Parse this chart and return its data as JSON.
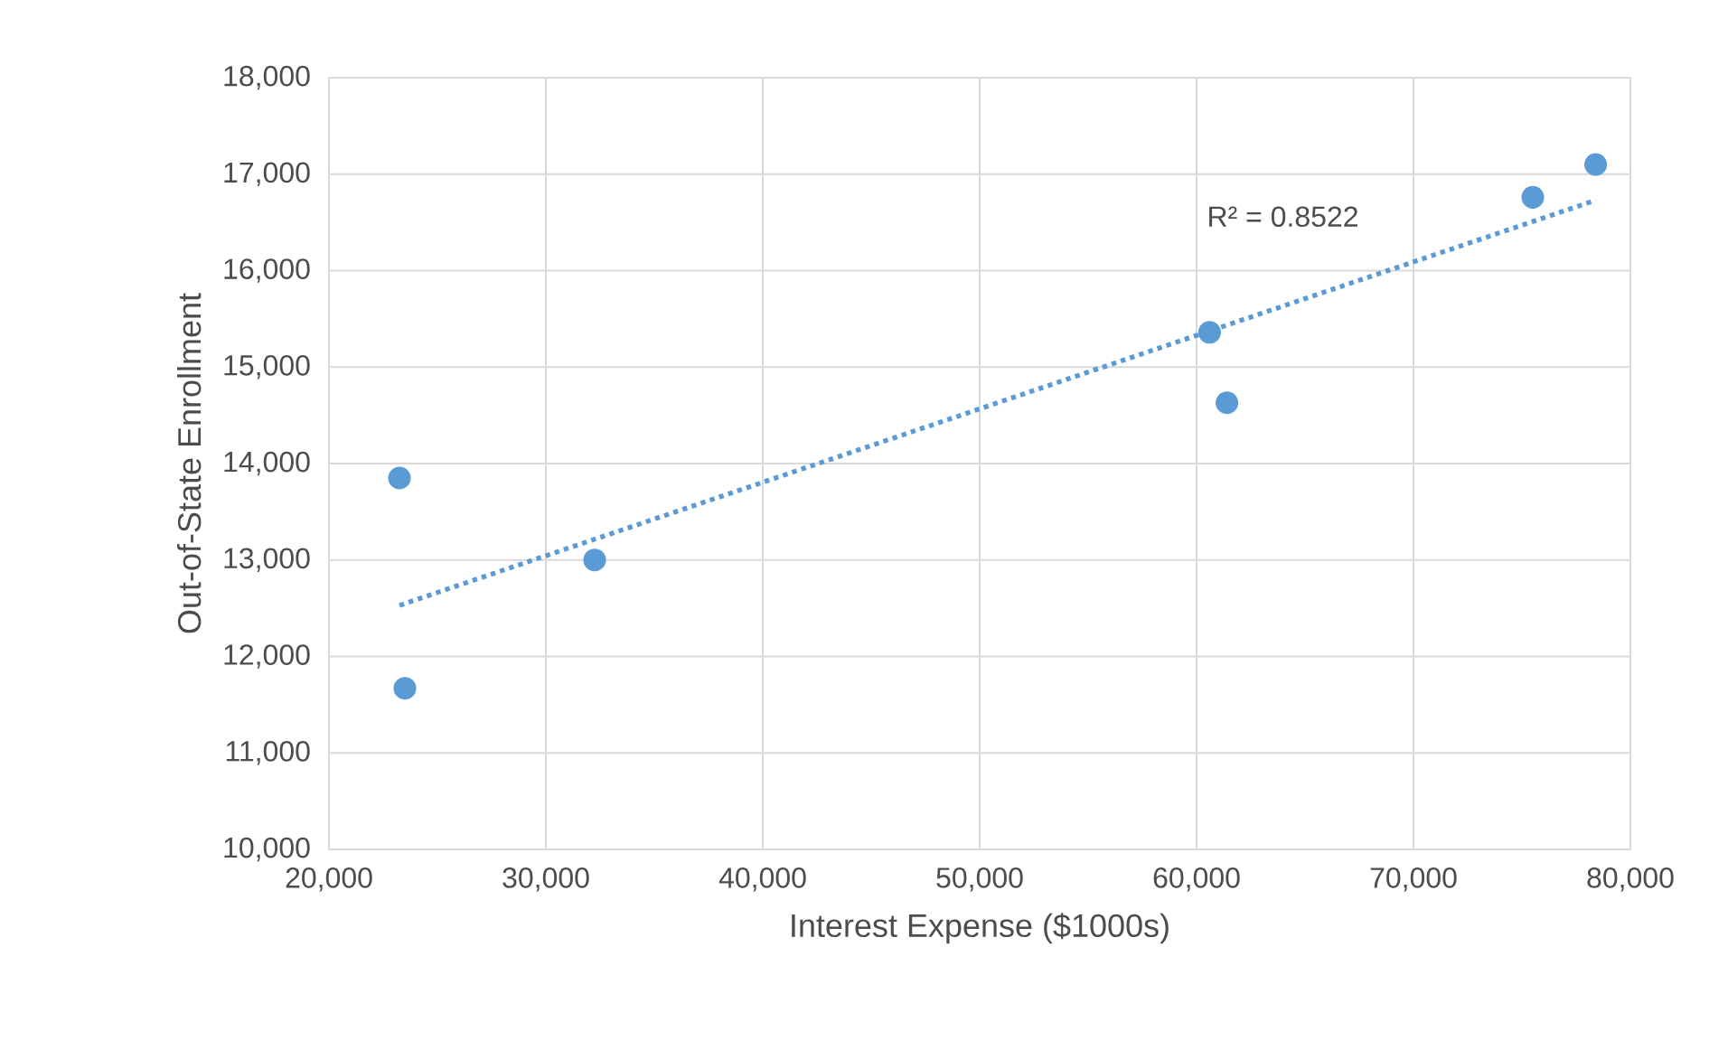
{
  "chart_data": {
    "type": "scatter",
    "xlabel": "Interest Expense ($1000s)",
    "ylabel": "Out-of-State Enrollment",
    "xlim": [
      20000,
      80000
    ],
    "xticks": [
      {
        "value": 20000,
        "label": "20,000"
      },
      {
        "value": 30000,
        "label": "30,000"
      },
      {
        "value": 40000,
        "label": "40,000"
      },
      {
        "value": 50000,
        "label": "50,000"
      },
      {
        "value": 60000,
        "label": "60,000"
      },
      {
        "value": 70000,
        "label": "70,000"
      },
      {
        "value": 80000,
        "label": "80,000"
      }
    ],
    "ylim": [
      10000,
      18000
    ],
    "yticks": [
      {
        "value": 10000,
        "label": "10,000"
      },
      {
        "value": 11000,
        "label": "11,000"
      },
      {
        "value": 12000,
        "label": "12,000"
      },
      {
        "value": 13000,
        "label": "13,000"
      },
      {
        "value": 14000,
        "label": "14,000"
      },
      {
        "value": 15000,
        "label": "15,000"
      },
      {
        "value": 16000,
        "label": "16,000"
      },
      {
        "value": 17000,
        "label": "17,000"
      },
      {
        "value": 18000,
        "label": "18,000"
      }
    ],
    "grid": true,
    "series": [
      {
        "color": "#5b9bd5",
        "marker": "circle",
        "x": [
          23250,
          23500,
          32250,
          60600,
          61400,
          75500,
          78400
        ],
        "values": [
          13850,
          11670,
          13000,
          15360,
          14630,
          16760,
          17100
        ]
      },
      {
        "type": "line",
        "color": "#5b9bd5",
        "line_style": "dotted",
        "x": [
          23250,
          78400
        ],
        "values": [
          12530,
          16730
        ]
      }
    ],
    "annotations": [
      "R² = 0.8522"
    ]
  }
}
